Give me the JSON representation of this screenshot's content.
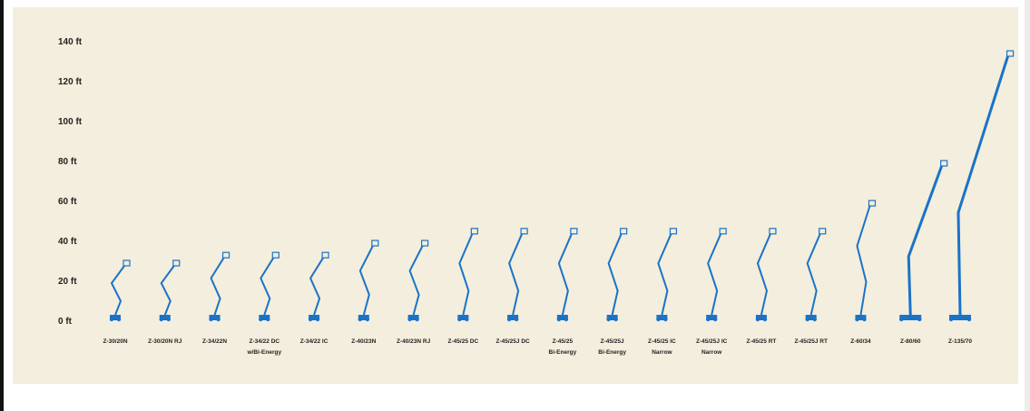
{
  "chart_data": {
    "type": "bar",
    "title": "",
    "xlabel": "",
    "ylabel": "",
    "ylim": [
      0,
      140
    ],
    "yticks": [
      "0 ft",
      "20 ft",
      "40 ft",
      "60 ft",
      "80 ft",
      "100 ft",
      "120 ft",
      "140 ft"
    ],
    "grid": false,
    "bar_color": "#1a73c8",
    "categories": [
      {
        "label": "Z-30/20N",
        "sub": ""
      },
      {
        "label": "Z-30/20N RJ",
        "sub": ""
      },
      {
        "label": "Z-34/22N",
        "sub": ""
      },
      {
        "label": "Z-34/22 DC",
        "sub": "w/Bi-Energy"
      },
      {
        "label": "Z-34/22 IC",
        "sub": ""
      },
      {
        "label": "Z-40/23N",
        "sub": ""
      },
      {
        "label": "Z-40/23N RJ",
        "sub": ""
      },
      {
        "label": "Z-45/25 DC",
        "sub": ""
      },
      {
        "label": "Z-45/25J DC",
        "sub": ""
      },
      {
        "label": "Z-45/25",
        "sub": "Bi-Energy"
      },
      {
        "label": "Z-45/25J",
        "sub": "Bi-Energy"
      },
      {
        "label": "Z-45/25 IC",
        "sub": "Narrow"
      },
      {
        "label": "Z-45/25J IC",
        "sub": "Narrow"
      },
      {
        "label": "Z-45/25 RT",
        "sub": ""
      },
      {
        "label": "Z-45/25J RT",
        "sub": ""
      },
      {
        "label": "Z-60/34",
        "sub": ""
      },
      {
        "label": "Z-80/60",
        "sub": ""
      },
      {
        "label": "Z-135/70",
        "sub": ""
      }
    ],
    "values": [
      30,
      30,
      34,
      34,
      34,
      40,
      40,
      46,
      46,
      46,
      46,
      46,
      46,
      46,
      46,
      60,
      80,
      135
    ]
  }
}
